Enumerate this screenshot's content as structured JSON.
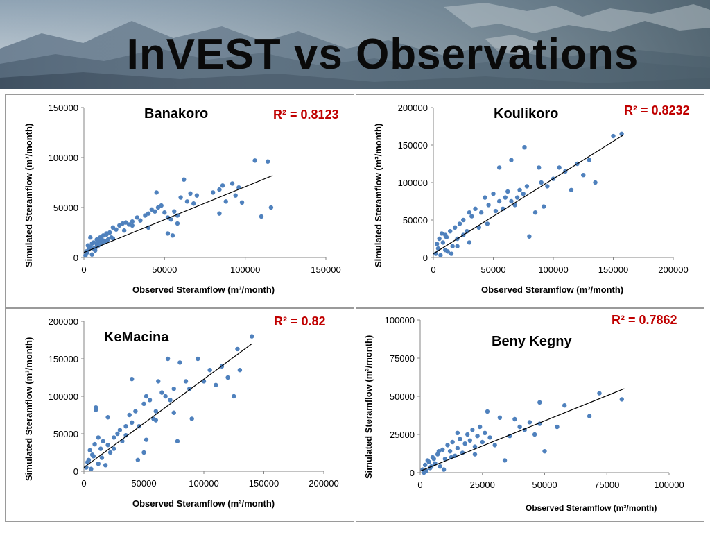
{
  "slide": {
    "title": "InVEST vs Observations"
  },
  "colors": {
    "points": "#4f81bd",
    "trend": "#000000",
    "r2": "#c00000"
  },
  "chart_data": [
    {
      "type": "scatter",
      "title": "Banakoro",
      "r2_label": "R² = 0.8123",
      "xlabel": "Observed Steramflow (m³/month)",
      "ylabel": "Simulated Steramflow (m³/month)",
      "xlim": [
        0,
        150000
      ],
      "ylim": [
        0,
        150000
      ],
      "xticks": [
        "0",
        "50000",
        "100000",
        "150000"
      ],
      "yticks": [
        "0",
        "50000",
        "100000",
        "150000"
      ],
      "trendline": {
        "x1": 0,
        "y1": 5000,
        "x2": 117000,
        "y2": 82000
      },
      "x": [
        1000,
        2000,
        3000,
        4000,
        5000,
        2500,
        1500,
        6000,
        7000,
        8000,
        9000,
        10000,
        11000,
        12000,
        13000,
        14000,
        15000,
        16000,
        17000,
        18000,
        20000,
        22000,
        24000,
        26000,
        28000,
        30000,
        33000,
        35000,
        38000,
        40000,
        42000,
        44000,
        46000,
        48000,
        50000,
        52000,
        54000,
        56000,
        58000,
        60000,
        62000,
        64000,
        66000,
        68000,
        70000,
        80000,
        84000,
        86000,
        88000,
        92000,
        94000,
        96000,
        98000,
        106000,
        110000,
        114000,
        116000,
        3000,
        5000,
        7000,
        9000,
        11000,
        4000,
        6000,
        8000,
        12000,
        14000,
        18000,
        25000,
        30000,
        40000,
        45000,
        52000,
        55000,
        58000,
        84000
      ],
      "y": [
        2000,
        5000,
        8000,
        10000,
        3000,
        12000,
        6000,
        15000,
        9000,
        18000,
        12000,
        20000,
        14000,
        22000,
        16000,
        24000,
        18000,
        25000,
        20000,
        30000,
        28000,
        32000,
        34000,
        35000,
        33000,
        36000,
        40000,
        37000,
        42000,
        44000,
        48000,
        46000,
        50000,
        52000,
        45000,
        40000,
        38000,
        46000,
        42000,
        60000,
        78000,
        56000,
        64000,
        54000,
        62000,
        65000,
        68000,
        72000,
        56000,
        74000,
        62000,
        70000,
        55000,
        97000,
        41000,
        96000,
        50000,
        11000,
        14000,
        7000,
        16000,
        18000,
        20000,
        9000,
        13000,
        17000,
        23000,
        19000,
        27000,
        32000,
        30000,
        65000,
        24000,
        22000,
        34000,
        44000
      ]
    },
    {
      "type": "scatter",
      "title": "Koulikoro",
      "r2_label": "R² = 0.8232",
      "xlabel": "Observed Steramflow (m³/month)",
      "ylabel": "Simulated Steramflow (m³/month)",
      "xlim": [
        0,
        200000
      ],
      "ylim": [
        0,
        200000
      ],
      "xticks": [
        "0",
        "50000",
        "100000",
        "150000",
        "200000"
      ],
      "yticks": [
        "0",
        "50000",
        "100000",
        "150000",
        "200000"
      ],
      "trendline": {
        "x1": 0,
        "y1": 5000,
        "x2": 158000,
        "y2": 163000
      },
      "x": [
        2000,
        4000,
        6000,
        8000,
        10000,
        12000,
        14000,
        16000,
        18000,
        20000,
        22000,
        25000,
        28000,
        30000,
        32000,
        35000,
        38000,
        40000,
        43000,
        46000,
        50000,
        52000,
        55000,
        58000,
        60000,
        62000,
        65000,
        68000,
        70000,
        72000,
        75000,
        78000,
        80000,
        85000,
        88000,
        90000,
        95000,
        100000,
        105000,
        110000,
        115000,
        120000,
        125000,
        130000,
        135000,
        150000,
        157000,
        5000,
        10000,
        15000,
        20000,
        25000,
        30000,
        45000,
        55000,
        65000,
        76000,
        92000,
        3000,
        7000,
        11000
      ],
      "y": [
        5000,
        12000,
        3000,
        20000,
        30000,
        8000,
        35000,
        15000,
        40000,
        25000,
        45000,
        50000,
        35000,
        60000,
        55000,
        65000,
        40000,
        60000,
        80000,
        70000,
        85000,
        62000,
        75000,
        65000,
        80000,
        88000,
        130000,
        70000,
        80000,
        90000,
        85000,
        95000,
        28000,
        60000,
        120000,
        100000,
        95000,
        105000,
        120000,
        115000,
        90000,
        125000,
        110000,
        130000,
        100000,
        162000,
        165000,
        25000,
        10000,
        5000,
        15000,
        30000,
        20000,
        45000,
        120000,
        75000,
        147000,
        68000,
        18000,
        32000,
        27000
      ]
    },
    {
      "type": "scatter",
      "title": "KeMacina",
      "r2_label": "R² = 0.82",
      "xlabel": "Observed Steramflow (m³/month)",
      "ylabel": "Simulated Steramflow (m³/month)",
      "xlim": [
        0,
        200000
      ],
      "ylim": [
        0,
        200000
      ],
      "xticks": [
        "0",
        "50000",
        "100000",
        "150000",
        "200000"
      ],
      "yticks": [
        "0",
        "50000",
        "100000",
        "150000",
        "200000"
      ],
      "trendline": {
        "x1": 0,
        "y1": 5000,
        "x2": 140000,
        "y2": 170000
      },
      "x": [
        2000,
        4000,
        6000,
        8000,
        10000,
        12000,
        14000,
        16000,
        18000,
        20000,
        22000,
        25000,
        28000,
        30000,
        32000,
        35000,
        38000,
        40000,
        43000,
        46000,
        50000,
        52000,
        55000,
        58000,
        60000,
        62000,
        65000,
        68000,
        70000,
        72000,
        75000,
        78000,
        80000,
        85000,
        88000,
        90000,
        95000,
        100000,
        105000,
        110000,
        115000,
        120000,
        125000,
        128000,
        130000,
        140000,
        10000,
        12000,
        5000,
        15000,
        25000,
        35000,
        45000,
        52000,
        60000,
        75000,
        3000,
        7000,
        9000,
        20000,
        40000,
        50000
      ],
      "y": [
        5000,
        15000,
        3000,
        20000,
        85000,
        10000,
        30000,
        40000,
        8000,
        35000,
        25000,
        45000,
        50000,
        55000,
        40000,
        60000,
        75000,
        65000,
        80000,
        60000,
        90000,
        100000,
        95000,
        70000,
        80000,
        120000,
        105000,
        100000,
        150000,
        95000,
        110000,
        40000,
        145000,
        120000,
        110000,
        70000,
        150000,
        120000,
        135000,
        115000,
        140000,
        125000,
        100000,
        163000,
        135000,
        180000,
        82000,
        45000,
        28000,
        18000,
        30000,
        48000,
        15000,
        42000,
        68000,
        78000,
        12000,
        22000,
        36000,
        72000,
        123000,
        25000
      ]
    },
    {
      "type": "scatter",
      "title": "Beny Kegny",
      "r2_label": "R² = 0.7862",
      "xlabel": "Observed Steramflow (m³/month)",
      "ylabel": "Simulated Steramflow (m³/month)",
      "xlim": [
        0,
        100000
      ],
      "ylim": [
        0,
        100000
      ],
      "xticks": [
        "0",
        "25000",
        "50000",
        "75000",
        "100000"
      ],
      "yticks": [
        "0",
        "25000",
        "50000",
        "75000",
        "100000"
      ],
      "trendline": {
        "x1": 0,
        "y1": 1000,
        "x2": 82000,
        "y2": 55000
      },
      "x": [
        1000,
        2000,
        3000,
        4000,
        5000,
        6000,
        7000,
        8000,
        9000,
        10000,
        11000,
        12000,
        13000,
        14000,
        15000,
        16000,
        17000,
        18000,
        19000,
        20000,
        21000,
        22000,
        23000,
        24000,
        25000,
        26000,
        28000,
        30000,
        32000,
        34000,
        36000,
        38000,
        40000,
        42000,
        44000,
        46000,
        48000,
        50000,
        55000,
        58000,
        68000,
        72000,
        81000,
        2500,
        3500,
        4500,
        5500,
        7500,
        9500,
        12500,
        15000,
        22000,
        27000,
        48000,
        1500
      ],
      "y": [
        2000,
        5000,
        8000,
        3000,
        10000,
        6000,
        12000,
        4000,
        15000,
        9000,
        18000,
        14000,
        20000,
        11000,
        16000,
        22000,
        13000,
        19000,
        25000,
        21000,
        28000,
        17000,
        24000,
        30000,
        20000,
        26000,
        23000,
        18000,
        36000,
        8000,
        24000,
        35000,
        30000,
        28000,
        33000,
        25000,
        46000,
        14000,
        30000,
        44000,
        37000,
        52000,
        48000,
        1000,
        7000,
        4000,
        9000,
        14000,
        2000,
        10000,
        26000,
        12000,
        40000,
        32000,
        0
      ]
    }
  ]
}
